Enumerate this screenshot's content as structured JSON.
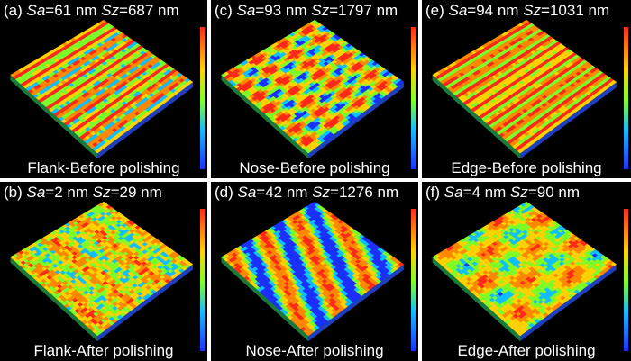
{
  "panels": [
    {
      "id": "a",
      "sa_label": "Sa",
      "sa": "=61 nm ",
      "sz_label": "Sz",
      "sz": "=687 nm",
      "caption": "Flank-Before polishing",
      "letter": "(a) ",
      "pattern": "stripes-fine"
    },
    {
      "id": "c",
      "sa_label": "Sa",
      "sa": "=93 nm ",
      "sz_label": "Sz",
      "sz": "=1797 nm",
      "caption": "Nose-Before polishing",
      "letter": "(c) ",
      "pattern": "stripes-mixed"
    },
    {
      "id": "e",
      "sa_label": "Sa",
      "sa": "=94 nm ",
      "sz_label": "Sz",
      "sz": "=1031 nm",
      "caption": "Edge-Before polishing",
      "letter": "(e) ",
      "pattern": "stripes-bright"
    },
    {
      "id": "b",
      "sa_label": "Sa",
      "sa": "=2 nm ",
      "sz_label": "Sz",
      "sz": "=29 nm",
      "caption": "Flank-After polishing",
      "letter": "(b) ",
      "pattern": "speckle"
    },
    {
      "id": "d",
      "sa_label": "Sa",
      "sa": "=42 nm ",
      "sz_label": "Sz",
      "sz": "=1276 nm",
      "caption": "Nose-After polishing",
      "letter": "(d) ",
      "pattern": "bands"
    },
    {
      "id": "f",
      "sa_label": "Sa",
      "sa": "=4 nm ",
      "sz_label": "Sz",
      "sz": "=90 nm",
      "caption": "Edge-After polishing",
      "letter": "(f) ",
      "pattern": "blobs"
    }
  ],
  "colors": {
    "red": "#ff2a1a",
    "orange": "#ff8a00",
    "yellow": "#ffd400",
    "green": "#7dff2a",
    "cyan": "#12c0ff",
    "blue": "#1c30ff"
  }
}
